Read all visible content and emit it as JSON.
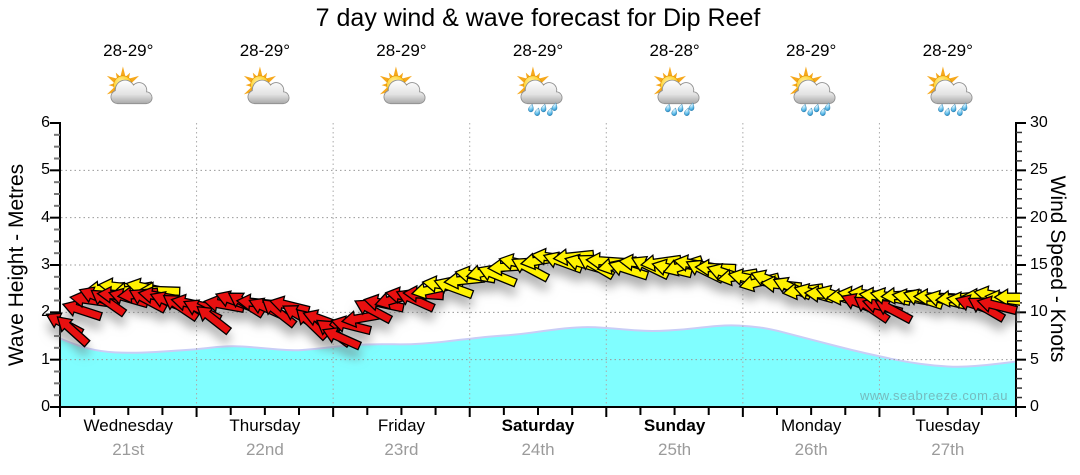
{
  "title": "7 day wind & wave forecast for Dip Reef",
  "watermark": "www.seabreeze.com.au",
  "days": [
    {
      "name": "Wednesday",
      "date": "21st",
      "temp": "28-29°",
      "icon": "sun-cloud",
      "bold": false
    },
    {
      "name": "Thursday",
      "date": "22nd",
      "temp": "28-29°",
      "icon": "sun-cloud",
      "bold": false
    },
    {
      "name": "Friday",
      "date": "23rd",
      "temp": "28-29°",
      "icon": "sun-cloud",
      "bold": false
    },
    {
      "name": "Saturday",
      "date": "24th",
      "temp": "28-29°",
      "icon": "sun-cloud-rain",
      "bold": true
    },
    {
      "name": "Sunday",
      "date": "25th",
      "temp": "28-28°",
      "icon": "sun-cloud-rain",
      "bold": true
    },
    {
      "name": "Monday",
      "date": "26th",
      "temp": "28-29°",
      "icon": "sun-cloud-rain",
      "bold": false
    },
    {
      "name": "Tuesday",
      "date": "27th",
      "temp": "28-29°",
      "icon": "sun-cloud-rain",
      "bold": false
    }
  ],
  "chart_data": {
    "type": "area",
    "title": "7 day wind & wave forecast for Dip Reef",
    "x_axis": {
      "categories": [
        "Wednesday 21st",
        "Thursday 22nd",
        "Friday 23rd",
        "Saturday 24th",
        "Sunday 25th",
        "Monday 26th",
        "Tuesday 27th"
      ],
      "range_days": [
        0,
        7
      ],
      "minor_ticks_per_day": 4
    },
    "y_left": {
      "label": "Wave Height - Metres",
      "range": [
        0,
        6
      ],
      "ticks": [
        0,
        1,
        2,
        3,
        4,
        5,
        6
      ],
      "gridlines": [
        1,
        2,
        3,
        4,
        5
      ]
    },
    "y_right": {
      "label": "Wind Speed - Knots",
      "range": [
        0,
        30
      ],
      "ticks": [
        0,
        5,
        10,
        15,
        20,
        25,
        30
      ],
      "gridlines": [
        5,
        10,
        15,
        20,
        25
      ]
    },
    "grid": {
      "h_color": "#999999",
      "v_color": "#aaaaaa",
      "style": "dotted"
    },
    "series": [
      {
        "name": "Wave Height",
        "unit": "m",
        "type": "area",
        "fill_color": "#80feff",
        "edge_color": "#c9cdf6",
        "x_days": [
          0,
          0.12,
          0.3,
          0.5,
          0.7,
          0.9,
          1.0,
          1.15,
          1.3,
          1.5,
          1.7,
          1.85,
          2.0,
          2.15,
          2.35,
          2.55,
          2.75,
          2.9,
          3.0,
          3.15,
          3.35,
          3.55,
          3.75,
          3.9,
          4.05,
          4.2,
          4.35,
          4.55,
          4.75,
          4.9,
          5.05,
          5.2,
          5.4,
          5.6,
          5.8,
          6.0,
          6.2,
          6.4,
          6.6,
          6.8,
          7.0
        ],
        "values": [
          1.45,
          1.3,
          1.17,
          1.14,
          1.16,
          1.2,
          1.22,
          1.27,
          1.29,
          1.24,
          1.19,
          1.22,
          1.27,
          1.31,
          1.33,
          1.32,
          1.36,
          1.41,
          1.44,
          1.49,
          1.53,
          1.61,
          1.68,
          1.69,
          1.66,
          1.62,
          1.6,
          1.63,
          1.7,
          1.73,
          1.71,
          1.65,
          1.5,
          1.35,
          1.2,
          1.07,
          0.95,
          0.87,
          0.84,
          0.89,
          0.96
        ]
      },
      {
        "name": "Wind Speed",
        "unit": "knots",
        "type": "wind-arrows",
        "colors": {
          "r": "#e81010",
          "y": "#fff200"
        },
        "arrows": [
          [
            0.33,
            12.5,
            -6,
            "y"
          ],
          [
            0.43,
            12.7,
            6,
            "y"
          ],
          [
            0.53,
            12.4,
            -10,
            "y"
          ],
          [
            0.63,
            12.6,
            12,
            "y"
          ],
          [
            0.73,
            12.3,
            2,
            "y"
          ],
          [
            0.03,
            8.8,
            28,
            "r"
          ],
          [
            0.09,
            8.1,
            42,
            "r"
          ],
          [
            0.16,
            10.2,
            18,
            "r"
          ],
          [
            0.22,
            11.3,
            8,
            "r"
          ],
          [
            0.28,
            11.6,
            22,
            "r"
          ],
          [
            0.35,
            11.1,
            35,
            "r"
          ],
          [
            0.42,
            11.8,
            5,
            "r"
          ],
          [
            0.5,
            11.5,
            16,
            "r"
          ],
          [
            0.57,
            11.9,
            -6,
            "r"
          ],
          [
            0.64,
            11.3,
            28,
            "r"
          ],
          [
            0.72,
            11.7,
            10,
            "r"
          ],
          [
            0.8,
            11.1,
            22,
            "r"
          ],
          [
            0.88,
            10.6,
            34,
            "r"
          ],
          [
            0.96,
            10.9,
            12,
            "r"
          ],
          [
            1.04,
            10.2,
            26,
            "r"
          ],
          [
            1.12,
            9.3,
            38,
            "r"
          ],
          [
            1.2,
            10.8,
            10,
            "r"
          ],
          [
            1.28,
            11.2,
            20,
            "r"
          ],
          [
            1.36,
            10.9,
            32,
            "r"
          ],
          [
            1.44,
            11.0,
            6,
            "r"
          ],
          [
            1.52,
            10.4,
            24,
            "r"
          ],
          [
            1.6,
            10.0,
            38,
            "r"
          ],
          [
            1.68,
            10.7,
            14,
            "r"
          ],
          [
            1.76,
            9.6,
            30,
            "r"
          ],
          [
            1.84,
            8.8,
            44,
            "r"
          ],
          [
            1.92,
            9.2,
            20,
            "r"
          ],
          [
            2.0,
            7.9,
            36,
            "r"
          ],
          [
            2.06,
            7.3,
            24,
            "r"
          ],
          [
            2.13,
            8.6,
            14,
            "r"
          ],
          [
            2.21,
            9.4,
            -10,
            "r"
          ],
          [
            2.29,
            10.2,
            28,
            "r"
          ],
          [
            2.37,
            10.9,
            12,
            "r"
          ],
          [
            2.45,
            11.4,
            -16,
            "r"
          ],
          [
            2.53,
            11.7,
            10,
            "r"
          ],
          [
            2.6,
            11.3,
            24,
            "r"
          ],
          [
            2.66,
            11.9,
            4,
            "r"
          ],
          [
            2.72,
            12.4,
            -12,
            "y"
          ],
          [
            2.8,
            12.9,
            8,
            "y"
          ],
          [
            2.88,
            12.6,
            20,
            "y"
          ],
          [
            2.96,
            13.4,
            -6,
            "y"
          ],
          [
            3.04,
            13.9,
            10,
            "y"
          ],
          [
            3.12,
            14.3,
            -14,
            "y"
          ],
          [
            3.2,
            13.9,
            22,
            "y"
          ],
          [
            3.28,
            14.8,
            -4,
            "y"
          ],
          [
            3.36,
            15.2,
            12,
            "y"
          ],
          [
            3.44,
            14.6,
            28,
            "y"
          ],
          [
            3.52,
            15.5,
            -10,
            "y"
          ],
          [
            3.6,
            15.8,
            8,
            "y"
          ],
          [
            3.68,
            15.3,
            20,
            "y"
          ],
          [
            3.76,
            15.9,
            -6,
            "y"
          ],
          [
            3.84,
            15.1,
            16,
            "y"
          ],
          [
            3.92,
            14.9,
            30,
            "y"
          ],
          [
            4.0,
            15.4,
            4,
            "y"
          ],
          [
            4.08,
            15.0,
            -12,
            "y"
          ],
          [
            4.16,
            14.5,
            18,
            "y"
          ],
          [
            4.24,
            15.2,
            6,
            "y"
          ],
          [
            4.32,
            14.8,
            26,
            "y"
          ],
          [
            4.4,
            15.3,
            -8,
            "y"
          ],
          [
            4.48,
            14.6,
            14,
            "y"
          ],
          [
            4.56,
            14.9,
            -18,
            "y"
          ],
          [
            4.64,
            15.1,
            10,
            "y"
          ],
          [
            4.72,
            14.4,
            26,
            "y"
          ],
          [
            4.8,
            14.7,
            2,
            "y"
          ],
          [
            4.88,
            14.1,
            18,
            "y"
          ],
          [
            4.96,
            13.8,
            -10,
            "y"
          ],
          [
            5.04,
            13.6,
            12,
            "y"
          ],
          [
            5.12,
            13.2,
            -14,
            "y"
          ],
          [
            5.2,
            13.4,
            20,
            "y"
          ],
          [
            5.28,
            12.9,
            6,
            "y"
          ],
          [
            5.36,
            12.6,
            24,
            "y"
          ],
          [
            5.44,
            12.3,
            -8,
            "y"
          ],
          [
            5.52,
            12.0,
            16,
            "y"
          ],
          [
            5.6,
            11.9,
            4,
            "y"
          ],
          [
            5.68,
            11.8,
            18,
            "y"
          ],
          [
            5.76,
            11.7,
            -6,
            "y"
          ],
          [
            5.84,
            11.8,
            8,
            "y"
          ],
          [
            5.92,
            11.9,
            6,
            "y"
          ],
          [
            5.86,
            10.9,
            22,
            "r"
          ],
          [
            5.94,
            10.4,
            34,
            "r"
          ],
          [
            6.02,
            10.6,
            16,
            "r"
          ],
          [
            6.1,
            10.2,
            28,
            "r"
          ],
          [
            6.0,
            11.7,
            6,
            "y"
          ],
          [
            6.08,
            11.6,
            12,
            "y"
          ],
          [
            6.16,
            11.8,
            -4,
            "y"
          ],
          [
            6.24,
            11.5,
            10,
            "y"
          ],
          [
            6.32,
            11.4,
            18,
            "y"
          ],
          [
            6.4,
            11.6,
            2,
            "y"
          ],
          [
            6.48,
            11.3,
            14,
            "y"
          ],
          [
            6.56,
            11.5,
            -6,
            "y"
          ],
          [
            6.64,
            11.2,
            8,
            "y"
          ],
          [
            6.76,
            11.6,
            4,
            "y"
          ],
          [
            6.84,
            11.8,
            10,
            "y"
          ],
          [
            6.92,
            11.4,
            8,
            "y"
          ],
          [
            6.99,
            11.6,
            0,
            "y"
          ],
          [
            6.7,
            10.8,
            18,
            "r"
          ],
          [
            6.78,
            10.4,
            30,
            "r"
          ],
          [
            6.86,
            10.7,
            14,
            "r"
          ]
        ]
      }
    ]
  }
}
